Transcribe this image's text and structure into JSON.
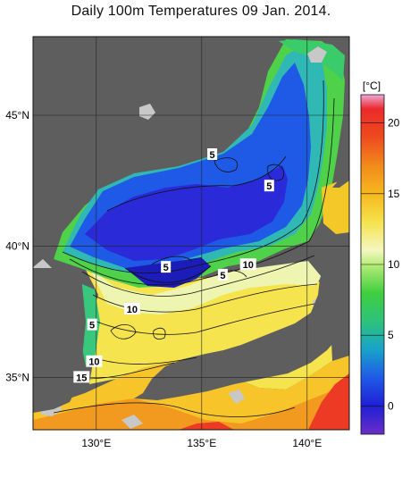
{
  "title": "Daily 100m Temperatures 09 Jan. 2014.",
  "axes": {
    "lat_labels": [
      {
        "deg": 45,
        "label": "45°N"
      },
      {
        "deg": 40,
        "label": "40°N"
      },
      {
        "deg": 35,
        "label": "35°N"
      }
    ],
    "lon_labels": [
      {
        "deg": 130,
        "label": "130°E"
      },
      {
        "deg": 135,
        "label": "135°E"
      },
      {
        "deg": 140,
        "label": "140°E"
      }
    ],
    "lon_range": [
      127,
      142
    ],
    "lat_range": [
      33,
      48
    ]
  },
  "colorbar": {
    "unit": "[°C]",
    "ticks": [
      {
        "v": 20,
        "label": "20"
      },
      {
        "v": 15,
        "label": "15"
      },
      {
        "v": 10,
        "label": "10"
      },
      {
        "v": 5,
        "label": "5"
      },
      {
        "v": 0,
        "label": "0"
      }
    ],
    "range": [
      -2,
      22
    ],
    "stops": [
      {
        "v": -2,
        "c": "#6b2ec7"
      },
      {
        "v": 0,
        "c": "#1f1fd6"
      },
      {
        "v": 2,
        "c": "#1f5ae6"
      },
      {
        "v": 4,
        "c": "#19a3c9"
      },
      {
        "v": 6,
        "c": "#2ec27a"
      },
      {
        "v": 8,
        "c": "#3fcf3f"
      },
      {
        "v": 10,
        "c": "#b8ec7a"
      },
      {
        "v": 11,
        "c": "#f4f7c2"
      },
      {
        "v": 13,
        "c": "#f5e24c"
      },
      {
        "v": 15,
        "c": "#f6b81e"
      },
      {
        "v": 17,
        "c": "#f28a1c"
      },
      {
        "v": 19,
        "c": "#ee4a1e"
      },
      {
        "v": 21,
        "c": "#ec2a2a"
      },
      {
        "v": 22,
        "c": "#f0a8d8"
      }
    ]
  },
  "contour_labels": [
    {
      "lon": 135.5,
      "lat": 43.5,
      "label": "5"
    },
    {
      "lon": 138.2,
      "lat": 42.3,
      "label": "5"
    },
    {
      "lon": 133.3,
      "lat": 39.2,
      "label": "5"
    },
    {
      "lon": 136.0,
      "lat": 38.9,
      "label": "5"
    },
    {
      "lon": 137.2,
      "lat": 39.3,
      "label": "10"
    },
    {
      "lon": 131.7,
      "lat": 37.6,
      "label": "10"
    },
    {
      "lon": 129.8,
      "lat": 37.0,
      "label": "5"
    },
    {
      "lon": 129.9,
      "lat": 35.6,
      "label": "10"
    },
    {
      "lon": 129.3,
      "lat": 35.0,
      "label": "15"
    }
  ],
  "colors": {
    "land": "#5e5e5e",
    "no_data": "#c8c8c8",
    "grid": "#222222"
  }
}
